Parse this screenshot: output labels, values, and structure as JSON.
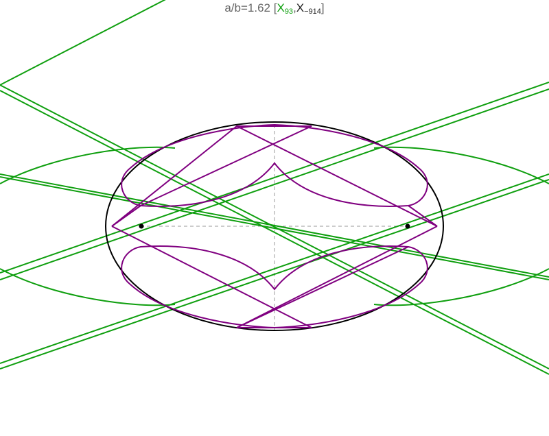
{
  "title": {
    "prefix": "a/b=1.62",
    "open_bracket": "[",
    "x1_letter": "X",
    "x1_sub": "93",
    "comma": ",",
    "x2_letter": "X",
    "x2_sub": "−914",
    "close_bracket": "]"
  },
  "colors": {
    "ellipse": "#000000",
    "envelope": "#800080",
    "lines": "#0f9f0f",
    "axes": "#999999",
    "title_text": "#666666"
  },
  "figure": {
    "ellipse_ratio": 1.62,
    "foci_marked": true,
    "axes_style": "dashed"
  }
}
